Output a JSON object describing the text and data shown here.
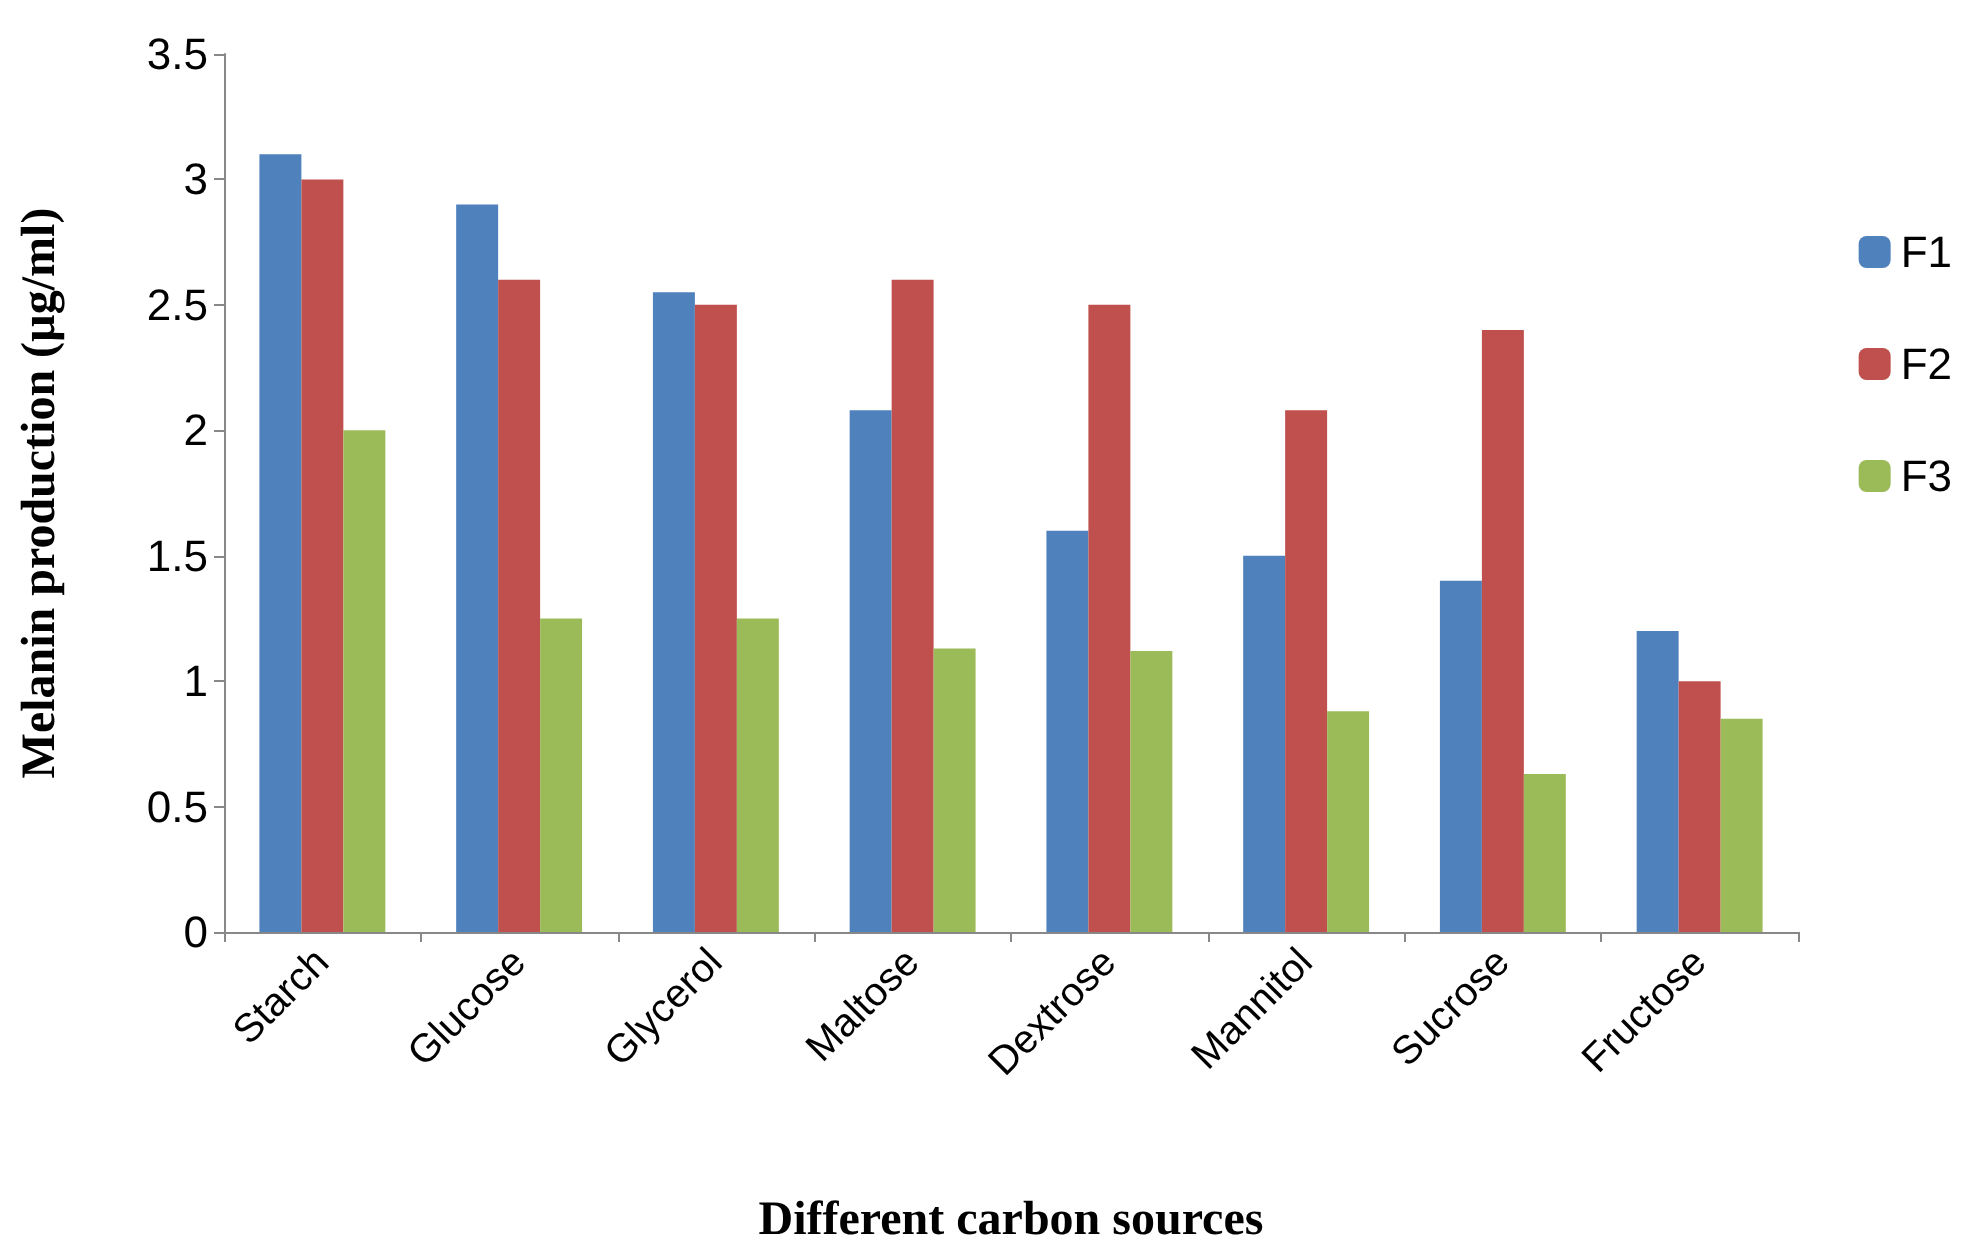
{
  "chart_data": {
    "type": "bar",
    "xlabel": "Different carbon sources",
    "ylabel": "Melanin production (µg/ml)",
    "categories": [
      "Starch",
      "Glucose",
      "Glycerol",
      "Maltose",
      "Dextrose",
      "Mannitol",
      "Sucrose",
      "Fructose"
    ],
    "series": [
      {
        "name": "F1",
        "color": "#4f81bd",
        "values": [
          3.1,
          2.9,
          2.55,
          2.08,
          1.6,
          1.5,
          1.4,
          1.2
        ]
      },
      {
        "name": "F2",
        "color": "#c0504d",
        "values": [
          3.0,
          2.6,
          2.5,
          2.6,
          2.5,
          2.08,
          2.4,
          1.0
        ]
      },
      {
        "name": "F3",
        "color": "#9bbb59",
        "values": [
          2.0,
          1.25,
          1.25,
          1.13,
          1.12,
          0.88,
          0.63,
          0.85
        ]
      }
    ],
    "ylim": [
      0,
      3.5
    ],
    "yticks": [
      0,
      0.5,
      1,
      1.5,
      2,
      2.5,
      3,
      3.5
    ],
    "grid": false,
    "legend": "top right"
  }
}
